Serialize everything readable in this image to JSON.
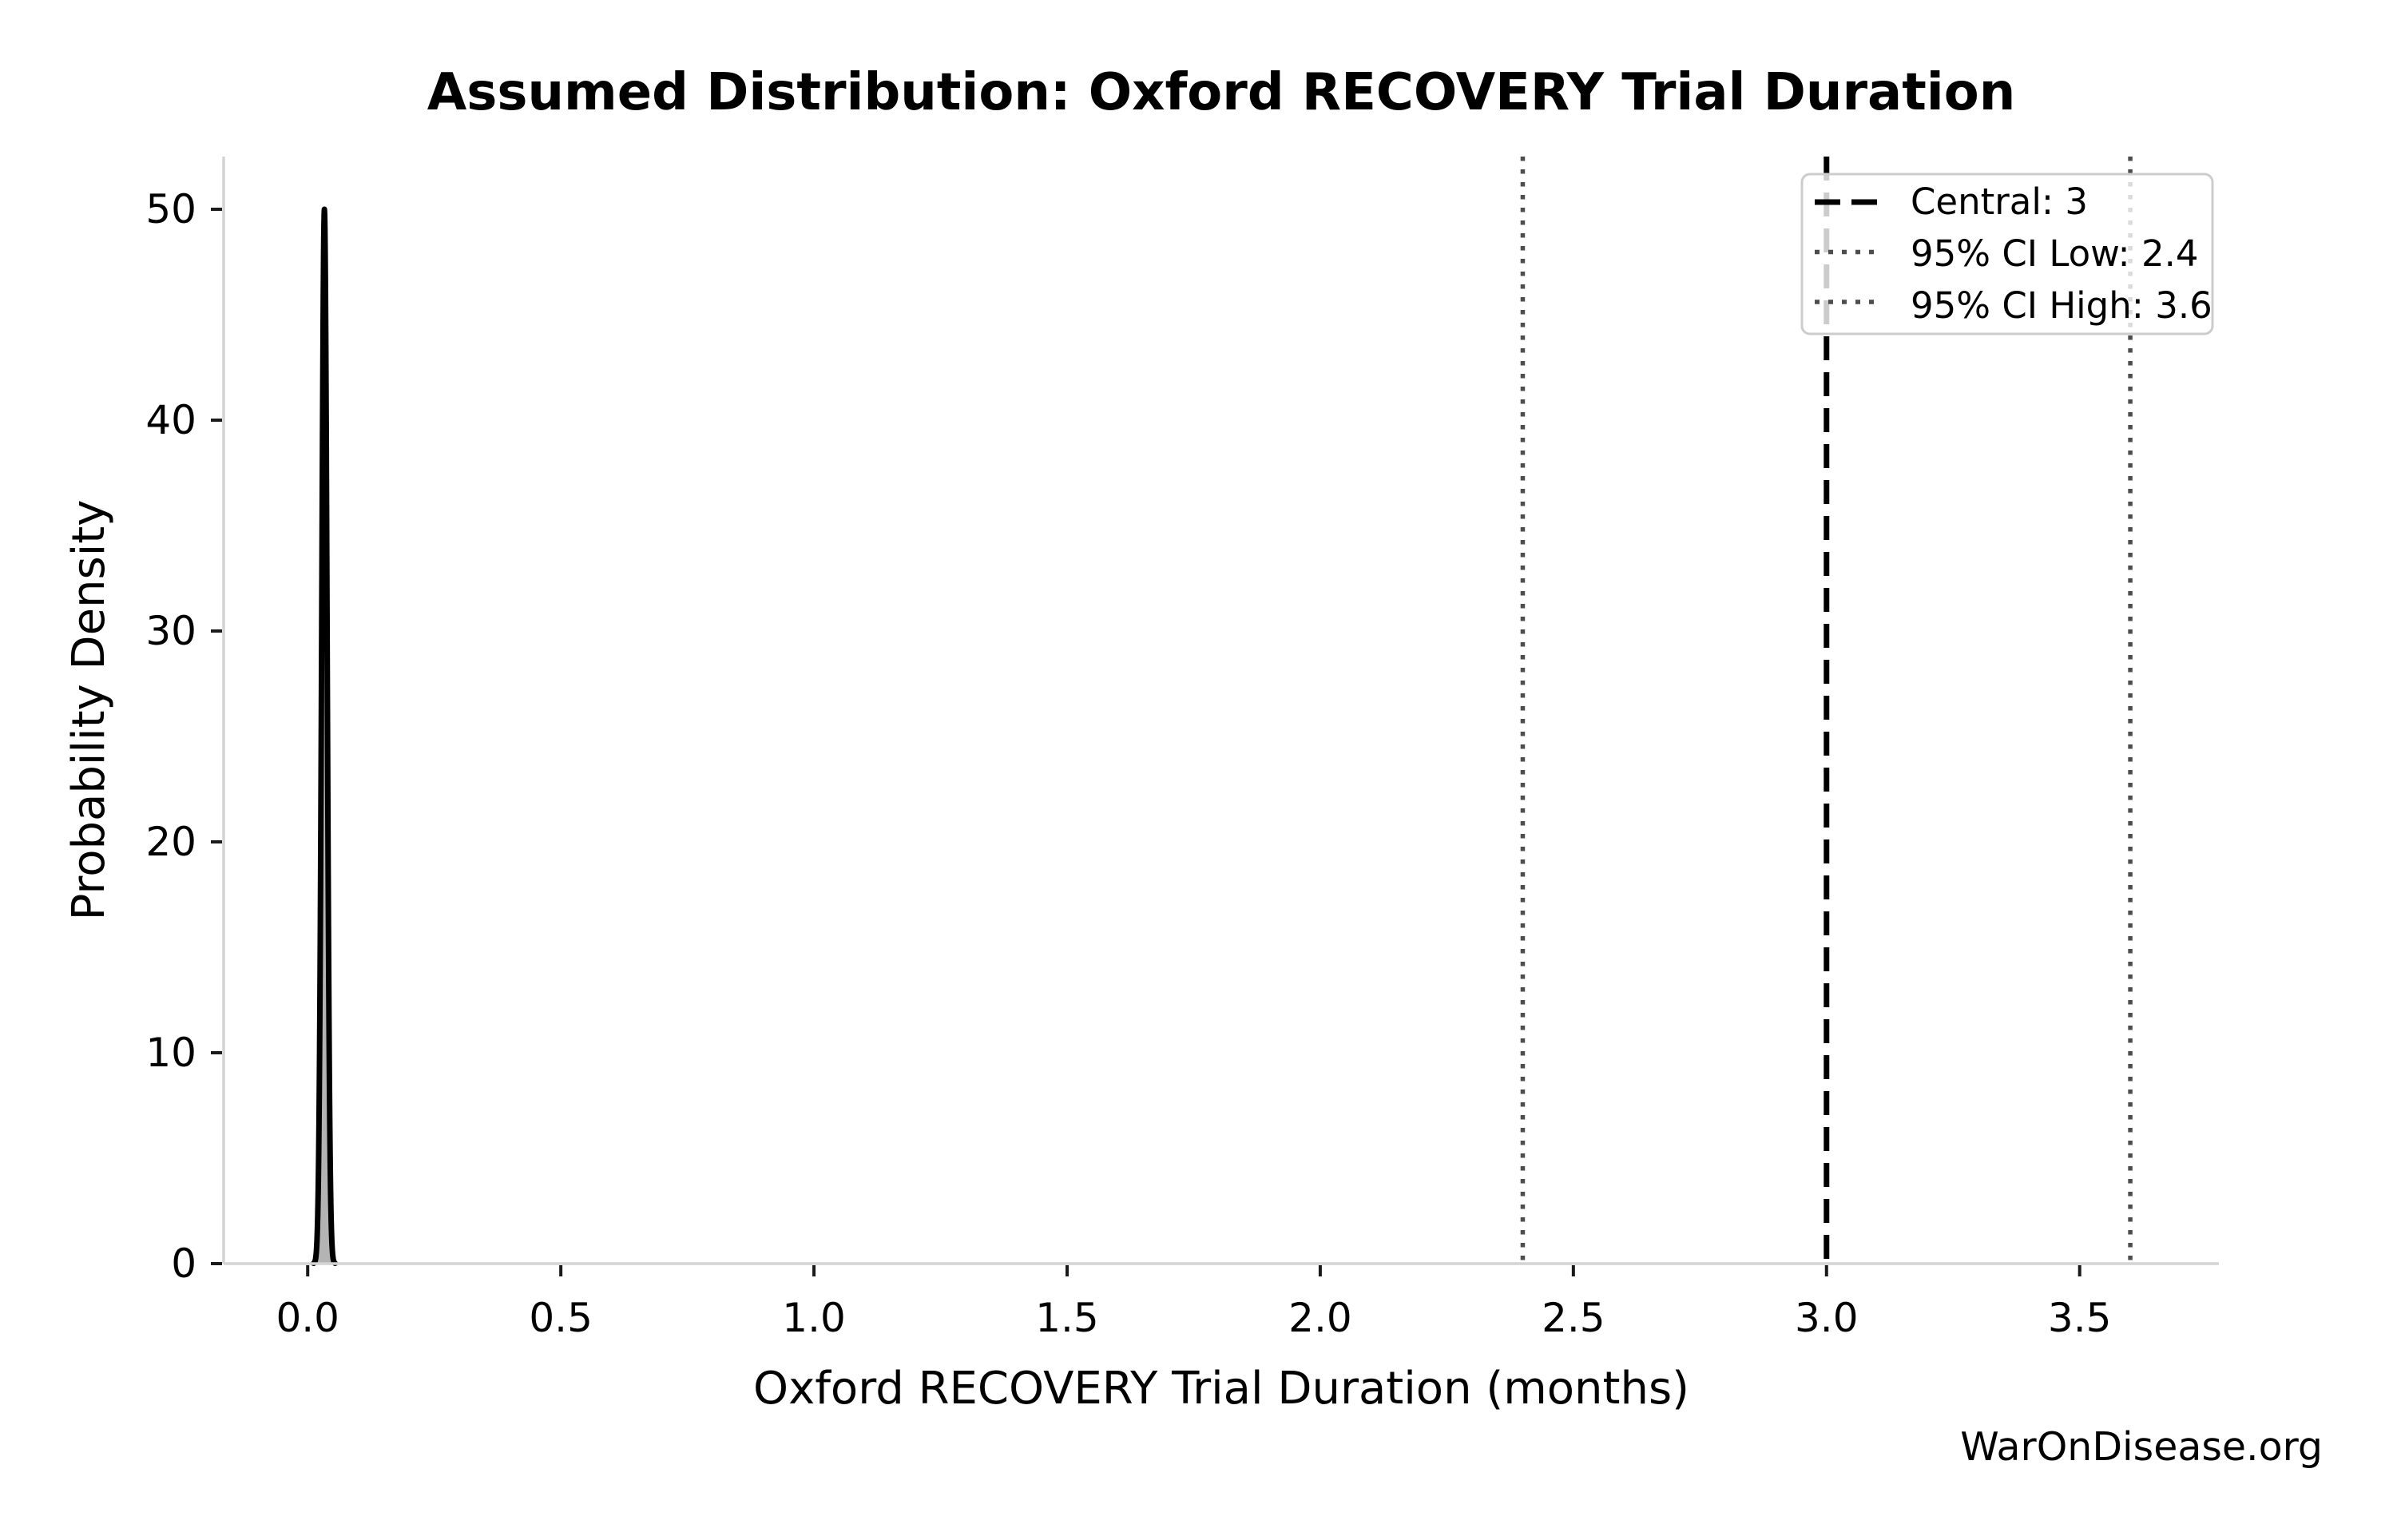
{
  "title": "Assumed Distribution: Oxford RECOVERY Trial Duration",
  "watermark": "WarOnDisease.org",
  "chart_data": {
    "type": "area",
    "title": "Assumed Distribution: Oxford RECOVERY Trial Duration",
    "xlabel": "Oxford RECOVERY Trial Duration (months)",
    "ylabel": "Probability Density",
    "xlim": [
      -0.166,
      3.775
    ],
    "ylim": [
      0,
      52.5
    ],
    "grid": false,
    "x_ticks": [
      0.0,
      0.5,
      1.0,
      1.5,
      2.0,
      2.5,
      3.0,
      3.5
    ],
    "x_tick_labels": [
      "0.0",
      "0.5",
      "1.0",
      "1.5",
      "2.0",
      "2.5",
      "3.0",
      "3.5"
    ],
    "y_ticks": [
      0,
      10,
      20,
      30,
      40,
      50
    ],
    "y_tick_labels": [
      "0",
      "10",
      "20",
      "30",
      "40",
      "50"
    ],
    "distribution": {
      "shape": "gaussian-approx narrow spike",
      "peak_x": 0.033,
      "sigma": 0.0053,
      "peak_density": 50,
      "line_color": "#000000",
      "fill_color": "#b4b4b4"
    },
    "reference_lines": [
      {
        "name": "central",
        "label": "Central: 3",
        "x": 3.0,
        "style": "dashed",
        "color": "#000000",
        "width": 7
      },
      {
        "name": "ci-low",
        "label": "95% CI Low: 2.4",
        "x": 2.4,
        "style": "dotted",
        "color": "#4d4d4d",
        "width": 5.5
      },
      {
        "name": "ci-high",
        "label": "95% CI High: 3.6",
        "x": 3.6,
        "style": "dotted",
        "color": "#4d4d4d",
        "width": 5.5
      }
    ],
    "legend": {
      "position": "upper right",
      "entries": [
        "Central: 3",
        "95% CI Low: 2.4",
        "95% CI High: 3.6"
      ]
    },
    "colors": {
      "spine": "#d4d4d4",
      "tick": "#1a1a1a",
      "text": "#000000",
      "watermark": "#3a3a3a",
      "legend_border": "#cccccc",
      "legend_fill_alpha": 0.8
    }
  }
}
